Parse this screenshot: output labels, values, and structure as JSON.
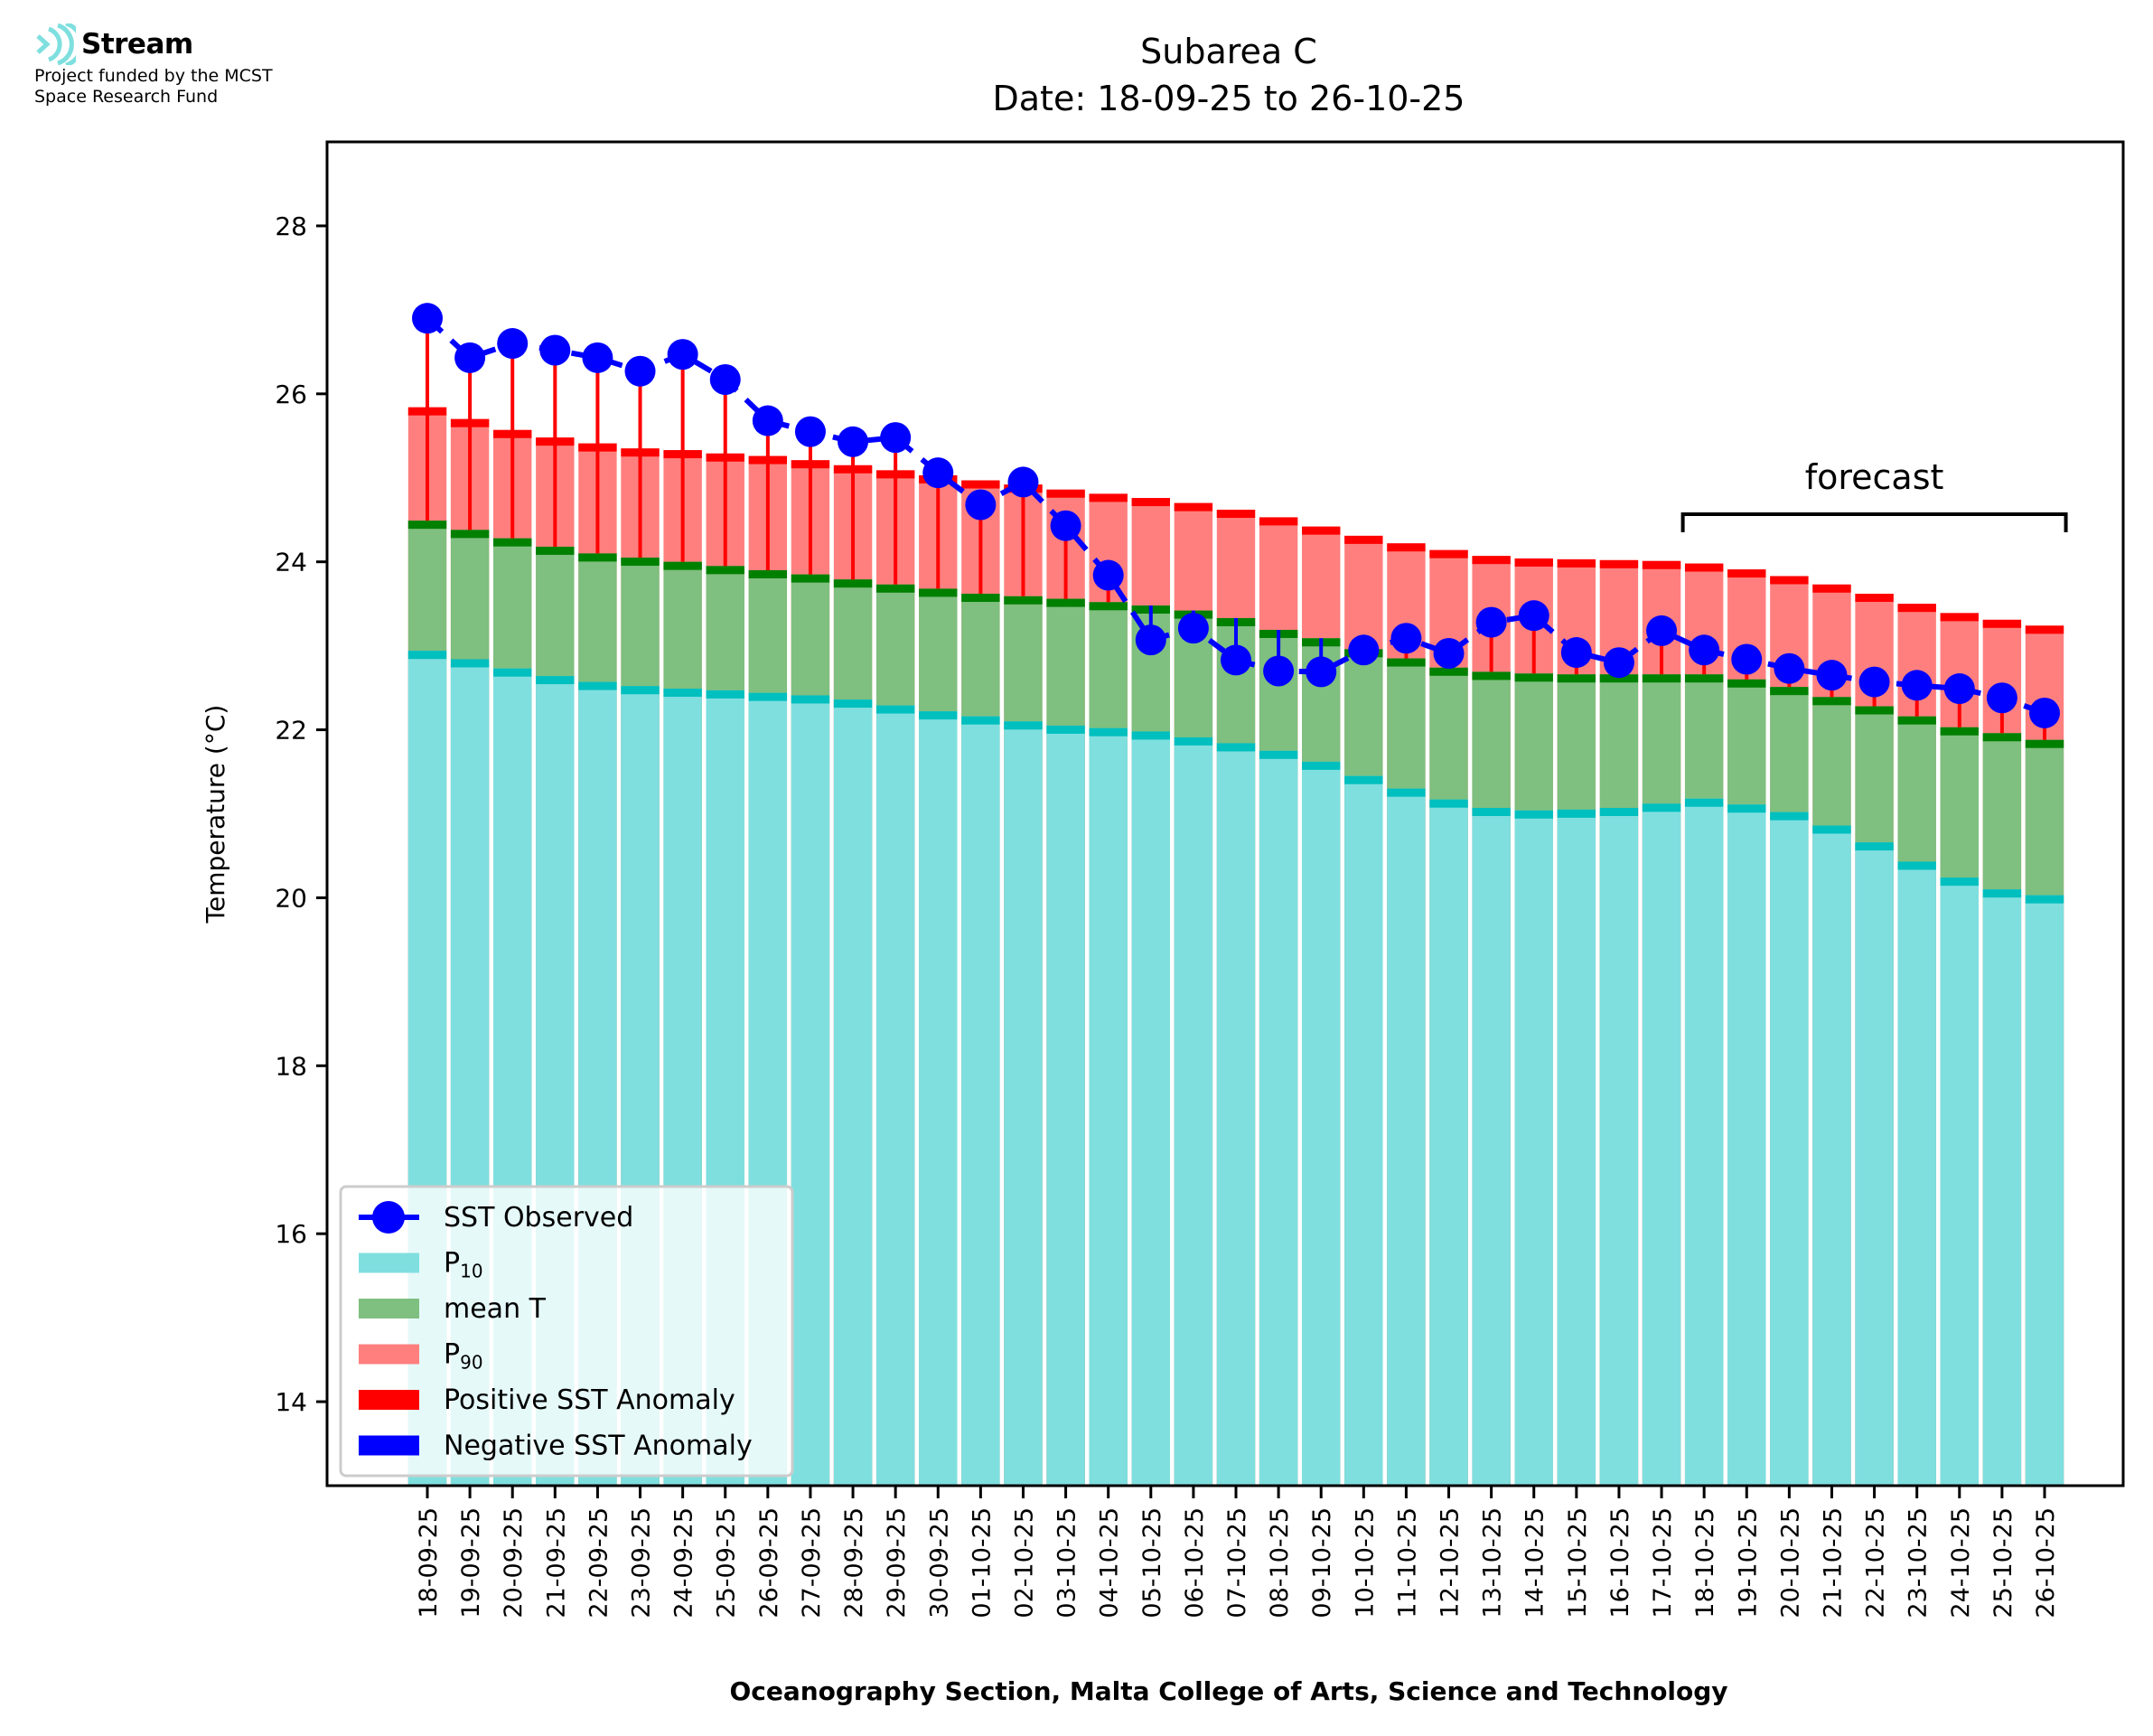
{
  "logo": {
    "name": "Stream",
    "line1": "Project funded by the MCST",
    "line2": "Space Research Fund",
    "color": "#7fdfdf"
  },
  "chart_data": {
    "type": "bar",
    "title": "Subarea C",
    "subtitle": "Date: 18-09-25 to 26-10-25",
    "xlabel": "Oceanography Section, Malta College of Arts, Science and Technology",
    "ylabel": "Temperature (°C)",
    "ylim": [
      13,
      29
    ],
    "yticks": [
      14,
      16,
      18,
      20,
      22,
      24,
      26,
      28
    ],
    "grid": false,
    "legend_position": "lower-left",
    "annotation": {
      "text": "forecast",
      "from_category": "17-10-25",
      "to_category": "26-10-25"
    },
    "categories": [
      "18-09-25",
      "19-09-25",
      "20-09-25",
      "21-09-25",
      "22-09-25",
      "23-09-25",
      "24-09-25",
      "25-09-25",
      "26-09-25",
      "27-09-25",
      "28-09-25",
      "29-09-25",
      "30-09-25",
      "01-10-25",
      "02-10-25",
      "03-10-25",
      "04-10-25",
      "05-10-25",
      "06-10-25",
      "07-10-25",
      "08-10-25",
      "09-10-25",
      "10-10-25",
      "11-10-25",
      "12-10-25",
      "13-10-25",
      "14-10-25",
      "15-10-25",
      "16-10-25",
      "17-10-25",
      "18-10-25",
      "19-10-25",
      "20-10-25",
      "21-10-25",
      "22-10-25",
      "23-10-25",
      "24-10-25",
      "25-10-25",
      "26-10-25"
    ],
    "series": [
      {
        "name": "P90",
        "key": "p90",
        "color": "#ff7f7f",
        "cap_color": "#ff0000",
        "values": [
          25.84,
          25.7,
          25.57,
          25.48,
          25.41,
          25.35,
          25.33,
          25.29,
          25.26,
          25.21,
          25.15,
          25.09,
          25.03,
          24.97,
          24.92,
          24.86,
          24.81,
          24.76,
          24.7,
          24.62,
          24.53,
          24.42,
          24.31,
          24.22,
          24.14,
          24.07,
          24.04,
          24.03,
          24.02,
          24.01,
          23.98,
          23.91,
          23.83,
          23.73,
          23.62,
          23.5,
          23.39,
          23.31,
          23.24
        ]
      },
      {
        "name": "mean T",
        "key": "mean",
        "color": "#7fbf7f",
        "cap_color": "#008000",
        "values": [
          24.49,
          24.38,
          24.28,
          24.18,
          24.1,
          24.05,
          24.0,
          23.95,
          23.9,
          23.85,
          23.79,
          23.73,
          23.68,
          23.62,
          23.59,
          23.56,
          23.52,
          23.48,
          23.42,
          23.33,
          23.19,
          23.09,
          22.96,
          22.85,
          22.74,
          22.69,
          22.67,
          22.66,
          22.66,
          22.66,
          22.66,
          22.6,
          22.51,
          22.39,
          22.28,
          22.16,
          22.03,
          21.96,
          21.88
        ]
      },
      {
        "name": "P10",
        "key": "p10",
        "color": "#7fdfdf",
        "cap_color": "#00bfbf",
        "values": [
          22.94,
          22.84,
          22.73,
          22.64,
          22.57,
          22.52,
          22.49,
          22.47,
          22.44,
          22.41,
          22.36,
          22.29,
          22.22,
          22.16,
          22.1,
          22.05,
          22.02,
          21.98,
          21.91,
          21.84,
          21.75,
          21.62,
          21.45,
          21.3,
          21.17,
          21.07,
          21.04,
          21.05,
          21.07,
          21.12,
          21.18,
          21.11,
          21.02,
          20.86,
          20.66,
          20.43,
          20.24,
          20.1,
          20.03
        ]
      },
      {
        "name": "SST Observed",
        "key": "sst",
        "color": "#0000ff",
        "values": [
          26.9,
          26.43,
          26.6,
          26.52,
          26.43,
          26.27,
          26.47,
          26.17,
          25.68,
          25.55,
          25.43,
          25.48,
          25.06,
          24.68,
          24.95,
          24.43,
          23.84,
          23.07,
          23.21,
          22.83,
          22.7,
          22.69,
          22.95,
          23.09,
          22.91,
          23.28,
          23.36,
          22.92,
          22.8,
          23.18,
          22.95,
          22.84,
          22.73,
          22.65,
          22.57,
          22.53,
          22.49,
          22.38,
          22.2
        ]
      }
    ],
    "legend": [
      {
        "label": "SST Observed",
        "sub": "",
        "kind": "line-marker",
        "color": "#0000ff"
      },
      {
        "label": "P",
        "sub": "10",
        "kind": "patch",
        "color": "#7fdfdf"
      },
      {
        "label": "mean T",
        "sub": "",
        "kind": "patch",
        "color": "#7fbf7f"
      },
      {
        "label": "P",
        "sub": "90",
        "kind": "patch",
        "color": "#ff7f7f"
      },
      {
        "label": "Positive SST Anomaly",
        "sub": "",
        "kind": "patch",
        "color": "#ff0000"
      },
      {
        "label": "Negative SST Anomaly",
        "sub": "",
        "kind": "patch",
        "color": "#0000ff"
      }
    ]
  }
}
